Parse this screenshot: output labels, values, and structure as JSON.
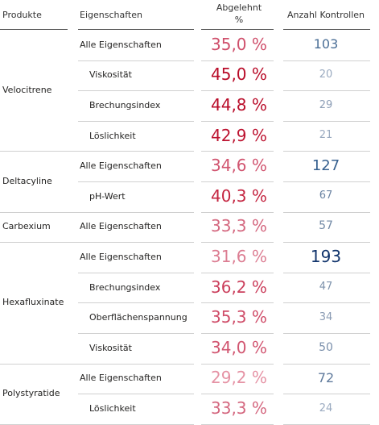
{
  "header": {
    "products": "Produkte",
    "properties": "Eigenschaften",
    "rejected_line1": "Abgelehnt",
    "rejected_line2": "%",
    "count": "Anzahl Kontrollen"
  },
  "groups": [
    {
      "product": "Velocitrene",
      "rows": [
        {
          "property": "Alle Eigenschaften",
          "rejected": "35,0 %",
          "count": "103",
          "rejected_color": "#cf4f6b",
          "count_color": "#4a6e96",
          "count_size": 16
        },
        {
          "property": "Viskosität",
          "rejected": "45,0 %",
          "count": "20",
          "rejected_color": "#b80a27",
          "count_color": "#9aaac0",
          "count_size": 13
        },
        {
          "property": "Brechungsindex",
          "rejected": "44,8 %",
          "count": "29",
          "rejected_color": "#b90c29",
          "count_color": "#8d9eb6",
          "count_size": 13
        },
        {
          "property": "Löslichkeit",
          "rejected": "42,9 %",
          "count": "21",
          "rejected_color": "#bd1431",
          "count_color": "#9aaac0",
          "count_size": 13
        }
      ]
    },
    {
      "product": "Deltacyline",
      "rows": [
        {
          "property": "Alle Eigenschaften",
          "rejected": "34,6 %",
          "count": "127",
          "rejected_color": "#d15570",
          "count_color": "#36608f",
          "count_size": 18
        },
        {
          "property": "pH-Wert",
          "rejected": "40,3 %",
          "count": "67",
          "rejected_color": "#c42440",
          "count_color": "#6b84a3",
          "count_size": 13
        }
      ]
    },
    {
      "product": "Carbexium",
      "rows": [
        {
          "property": "Alle Eigenschaften",
          "rejected": "33,3 %",
          "count": "57",
          "rejected_color": "#d4677f",
          "count_color": "#7289a6",
          "count_size": 14
        }
      ]
    },
    {
      "product": "Hexafluxinate",
      "rows": [
        {
          "property": "Alle Eigenschaften",
          "rejected": "31,6 %",
          "count": "193",
          "rejected_color": "#dc7d92",
          "count_color": "#11346c",
          "count_size": 20
        },
        {
          "property": "Brechungsindex",
          "rejected": "36,2 %",
          "count": "47",
          "rejected_color": "#cb3f5c",
          "count_color": "#7d92ac",
          "count_size": 13
        },
        {
          "property": "Oberflächenspannung",
          "rejected": "35,3 %",
          "count": "34",
          "rejected_color": "#cf4c68",
          "count_color": "#8a9bb3",
          "count_size": 13
        },
        {
          "property": "Viskosität",
          "rejected": "34,0 %",
          "count": "50",
          "rejected_color": "#d15570",
          "count_color": "#7a8fab",
          "count_size": 14
        }
      ]
    },
    {
      "product": "Polystyratide",
      "rows": [
        {
          "property": "Alle Eigenschaften",
          "rejected": "29,2 %",
          "count": "72",
          "rejected_color": "#e592a4",
          "count_color": "#5f7a9c",
          "count_size": 16
        },
        {
          "property": "Löslichkeit",
          "rejected": "33,3 %",
          "count": "24",
          "rejected_color": "#d4677f",
          "count_color": "#9aaac0",
          "count_size": 13
        }
      ]
    }
  ]
}
